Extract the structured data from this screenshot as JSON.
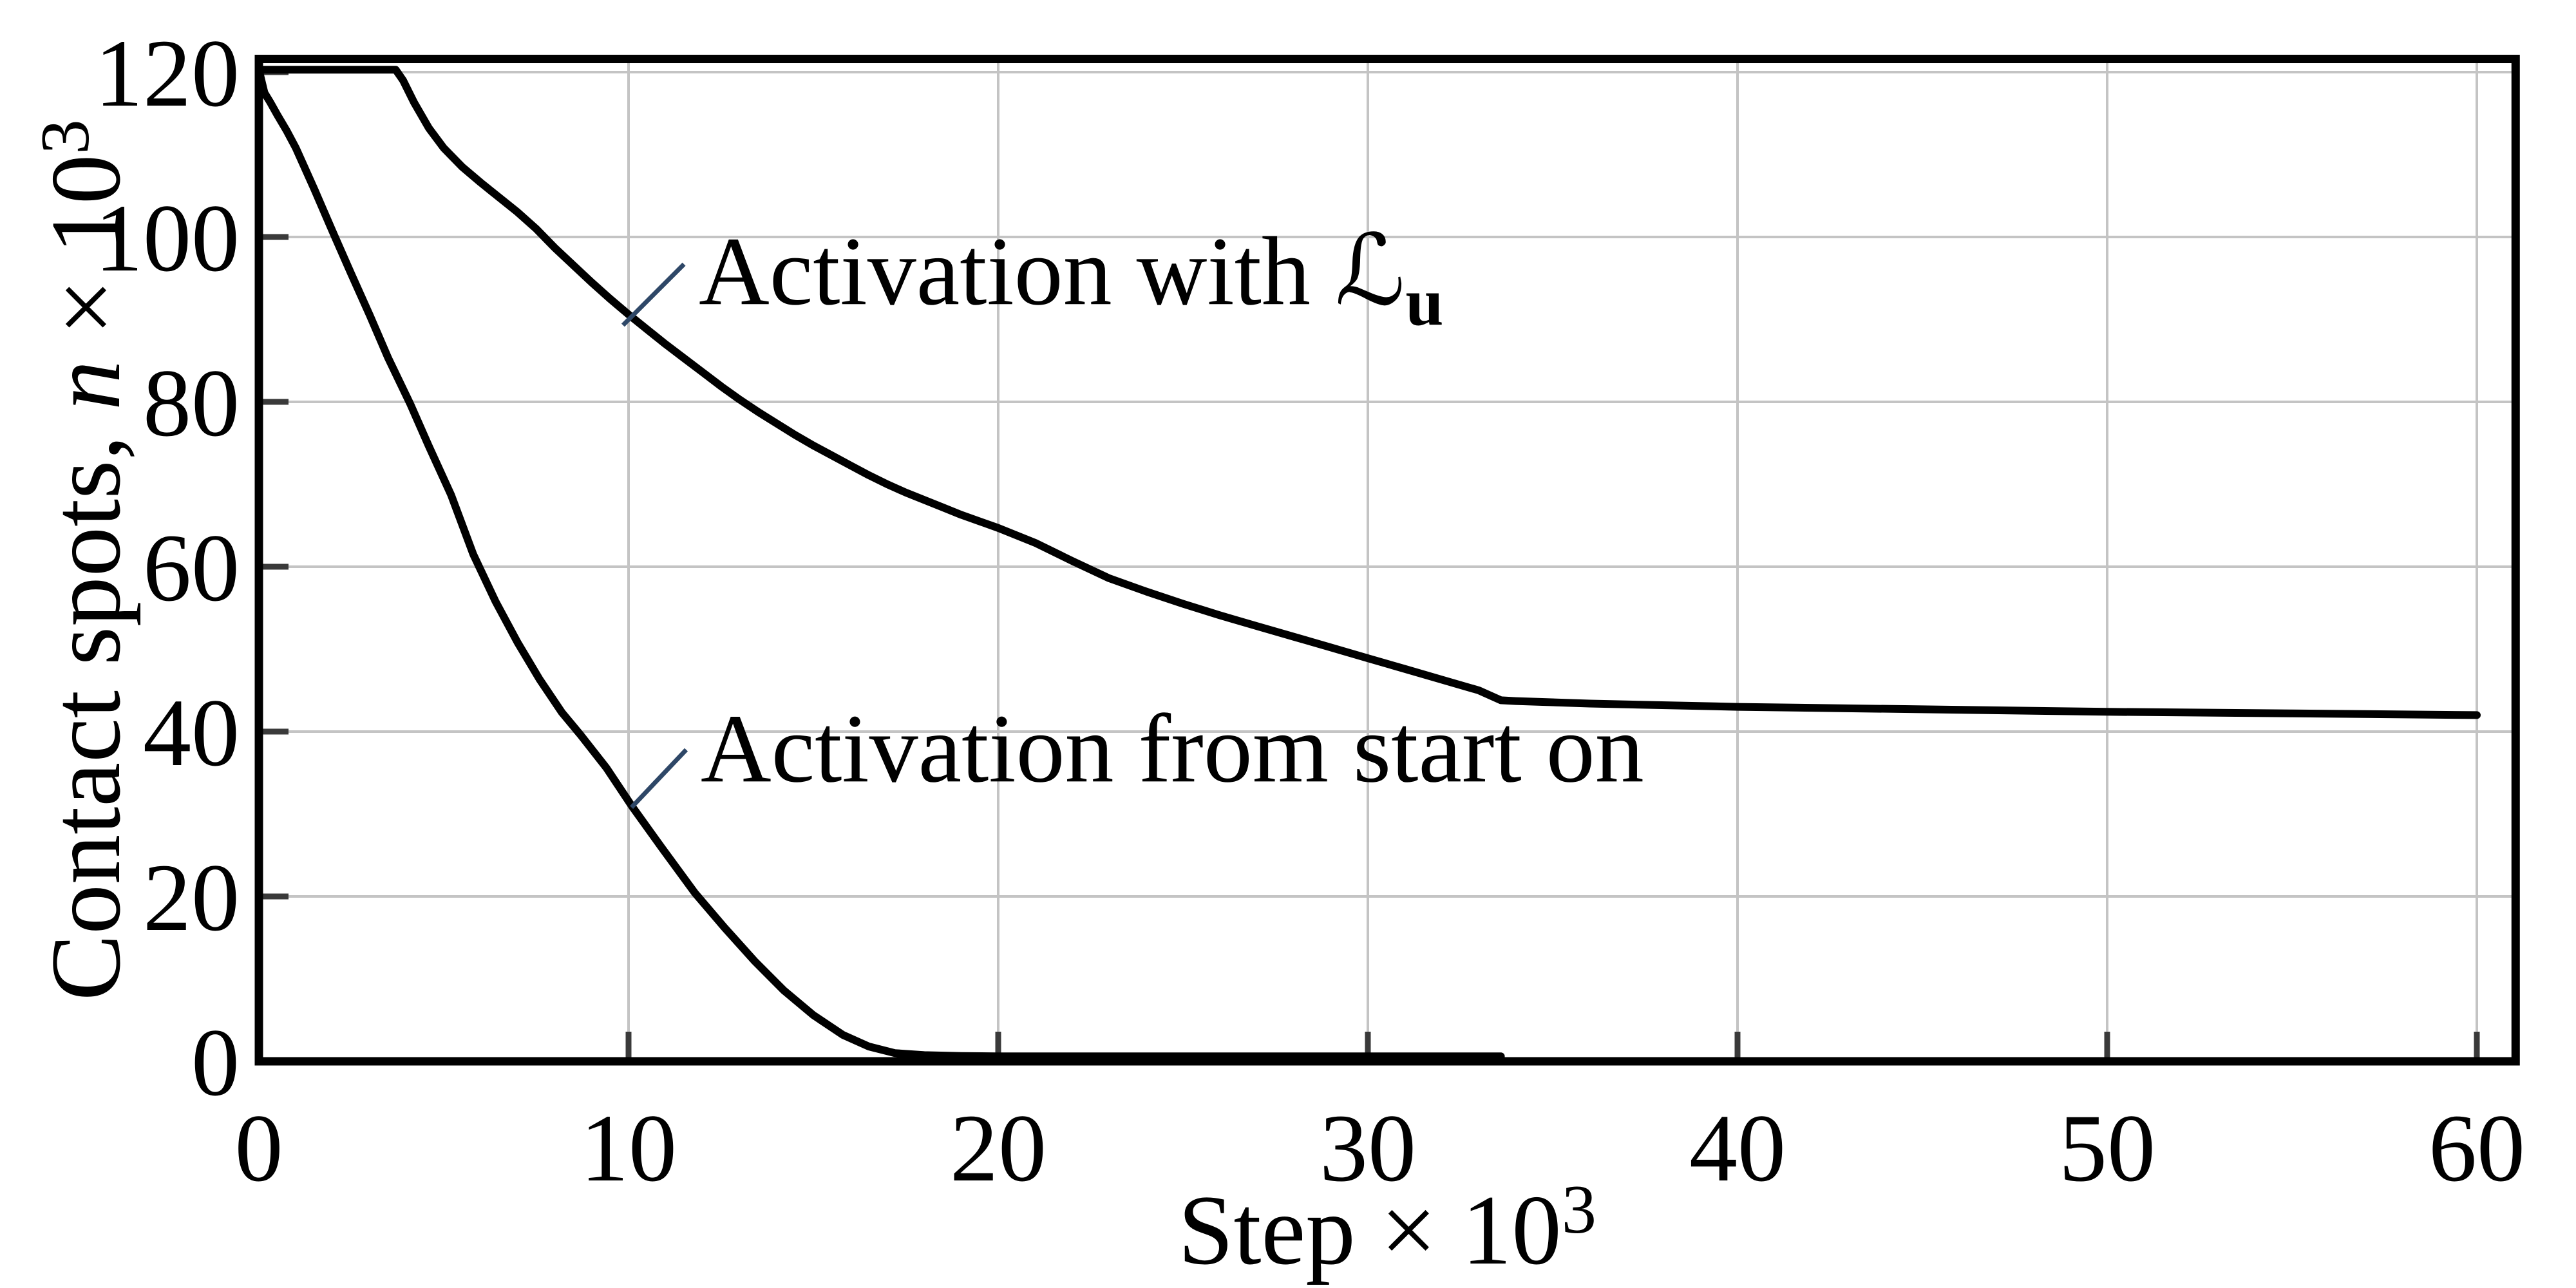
{
  "figure": {
    "background": "#ffffff",
    "frame_color": "#000000",
    "grid_color": "#c4c4c4",
    "tick_color": "#3a3a3a",
    "curve_color": "#000000",
    "leader_color": "#2e4767",
    "text_color": "#000000"
  },
  "chart_data": {
    "type": "line",
    "title": "",
    "xlabel": "Step × 10³",
    "xlabel_parts": [
      {
        "t": "Step × 10"
      },
      {
        "t": "3",
        "sup": true
      }
    ],
    "ylabel": "Contact spots, n × 10³",
    "ylabel_parts": [
      {
        "t": "Contact spots, "
      },
      {
        "t": "n",
        "italic": true
      },
      {
        "t": " × 10"
      },
      {
        "t": "3",
        "sup": true
      }
    ],
    "xlim": [
      0,
      61.05
    ],
    "ylim": [
      0,
      121.6
    ],
    "x_ticks": [
      0,
      10,
      20,
      30,
      40,
      50,
      60
    ],
    "y_ticks": [
      0,
      20,
      40,
      60,
      80,
      100,
      120
    ],
    "grid": true,
    "legend_position": "none, labels drawn as in-plot annotations with leader lines",
    "series": [
      {
        "name": "Activation with L_u",
        "points": [
          [
            0,
            120.3
          ],
          [
            3.7,
            120.3
          ],
          [
            3.9,
            119.0
          ],
          [
            4.2,
            116.3
          ],
          [
            4.6,
            113.2
          ],
          [
            5.0,
            110.8
          ],
          [
            5.5,
            108.5
          ],
          [
            6.0,
            106.6
          ],
          [
            6.5,
            104.8
          ],
          [
            7.0,
            103.0
          ],
          [
            7.5,
            101.0
          ],
          [
            8.0,
            98.7
          ],
          [
            8.5,
            96.6
          ],
          [
            9.0,
            94.5
          ],
          [
            9.5,
            92.5
          ],
          [
            10.0,
            90.6
          ],
          [
            10.5,
            88.8
          ],
          [
            11.0,
            87.0
          ],
          [
            11.5,
            85.3
          ],
          [
            12.0,
            83.6
          ],
          [
            12.5,
            81.9
          ],
          [
            13.0,
            80.3
          ],
          [
            13.5,
            78.8
          ],
          [
            14.0,
            77.4
          ],
          [
            14.5,
            76.0
          ],
          [
            15.0,
            74.7
          ],
          [
            15.5,
            73.5
          ],
          [
            16.0,
            72.3
          ],
          [
            16.5,
            71.1
          ],
          [
            17.0,
            70.0
          ],
          [
            17.5,
            69.0
          ],
          [
            18.0,
            68.1
          ],
          [
            18.5,
            67.2
          ],
          [
            19.0,
            66.3
          ],
          [
            19.5,
            65.5
          ],
          [
            20.0,
            64.7
          ],
          [
            21.0,
            62.9
          ],
          [
            22.0,
            60.7
          ],
          [
            23.0,
            58.6
          ],
          [
            24.0,
            57.0
          ],
          [
            25.0,
            55.5
          ],
          [
            26.0,
            54.1
          ],
          [
            27.0,
            52.8
          ],
          [
            28.0,
            51.5
          ],
          [
            29.0,
            50.2
          ],
          [
            30.0,
            48.9
          ],
          [
            31.0,
            47.6
          ],
          [
            32.0,
            46.3
          ],
          [
            33.0,
            45.0
          ],
          [
            33.6,
            43.8
          ],
          [
            34.0,
            43.7
          ],
          [
            36.0,
            43.4
          ],
          [
            40.0,
            43.0
          ],
          [
            45.0,
            42.7
          ],
          [
            50.0,
            42.4
          ],
          [
            55.0,
            42.2
          ],
          [
            60.0,
            42.0
          ]
        ]
      },
      {
        "name": "Activation from start on",
        "points": [
          [
            0,
            120.3
          ],
          [
            0.08,
            118.8
          ],
          [
            0.15,
            117.5
          ],
          [
            0.3,
            116.4
          ],
          [
            0.5,
            114.8
          ],
          [
            0.75,
            112.9
          ],
          [
            1.0,
            110.8
          ],
          [
            1.5,
            105.8
          ],
          [
            2.0,
            100.6
          ],
          [
            2.5,
            95.5
          ],
          [
            3.0,
            90.5
          ],
          [
            3.5,
            85.3
          ],
          [
            4.1,
            79.7
          ],
          [
            4.6,
            74.6
          ],
          [
            5.2,
            68.7
          ],
          [
            5.8,
            61.5
          ],
          [
            6.4,
            55.8
          ],
          [
            7.0,
            50.8
          ],
          [
            7.6,
            46.3
          ],
          [
            8.2,
            42.3
          ],
          [
            8.7,
            39.6
          ],
          [
            9.4,
            35.6
          ],
          [
            10.1,
            30.9
          ],
          [
            10.9,
            25.9
          ],
          [
            11.8,
            20.4
          ],
          [
            12.6,
            16.2
          ],
          [
            13.4,
            12.2
          ],
          [
            14.2,
            8.6
          ],
          [
            15.0,
            5.6
          ],
          [
            15.8,
            3.2
          ],
          [
            16.5,
            1.8
          ],
          [
            17.2,
            1.0
          ],
          [
            18.0,
            0.75
          ],
          [
            19.0,
            0.65
          ],
          [
            20.0,
            0.6
          ],
          [
            22.0,
            0.6
          ],
          [
            24.0,
            0.6
          ],
          [
            26.0,
            0.6
          ],
          [
            28.0,
            0.6
          ],
          [
            30.0,
            0.6
          ],
          [
            32.0,
            0.6
          ],
          [
            33.6,
            0.6
          ]
        ]
      }
    ],
    "annotations": [
      {
        "text": "Activation with ℒu",
        "parts": [
          {
            "t": "Activation with ℒ"
          },
          {
            "t": "u",
            "sub": true,
            "bold": true
          }
        ],
        "text_xy": [
          11.9,
          96.0
        ],
        "leader_from": [
          11.5,
          96.7
        ],
        "leader_to": [
          9.85,
          89.3
        ]
      },
      {
        "text": "Activation from start on",
        "parts": [
          {
            "t": "Activation from start on"
          }
        ],
        "text_xy": [
          11.95,
          38.1
        ],
        "leader_from": [
          11.56,
          37.8
        ],
        "leader_to": [
          10.08,
          30.8
        ]
      }
    ]
  }
}
